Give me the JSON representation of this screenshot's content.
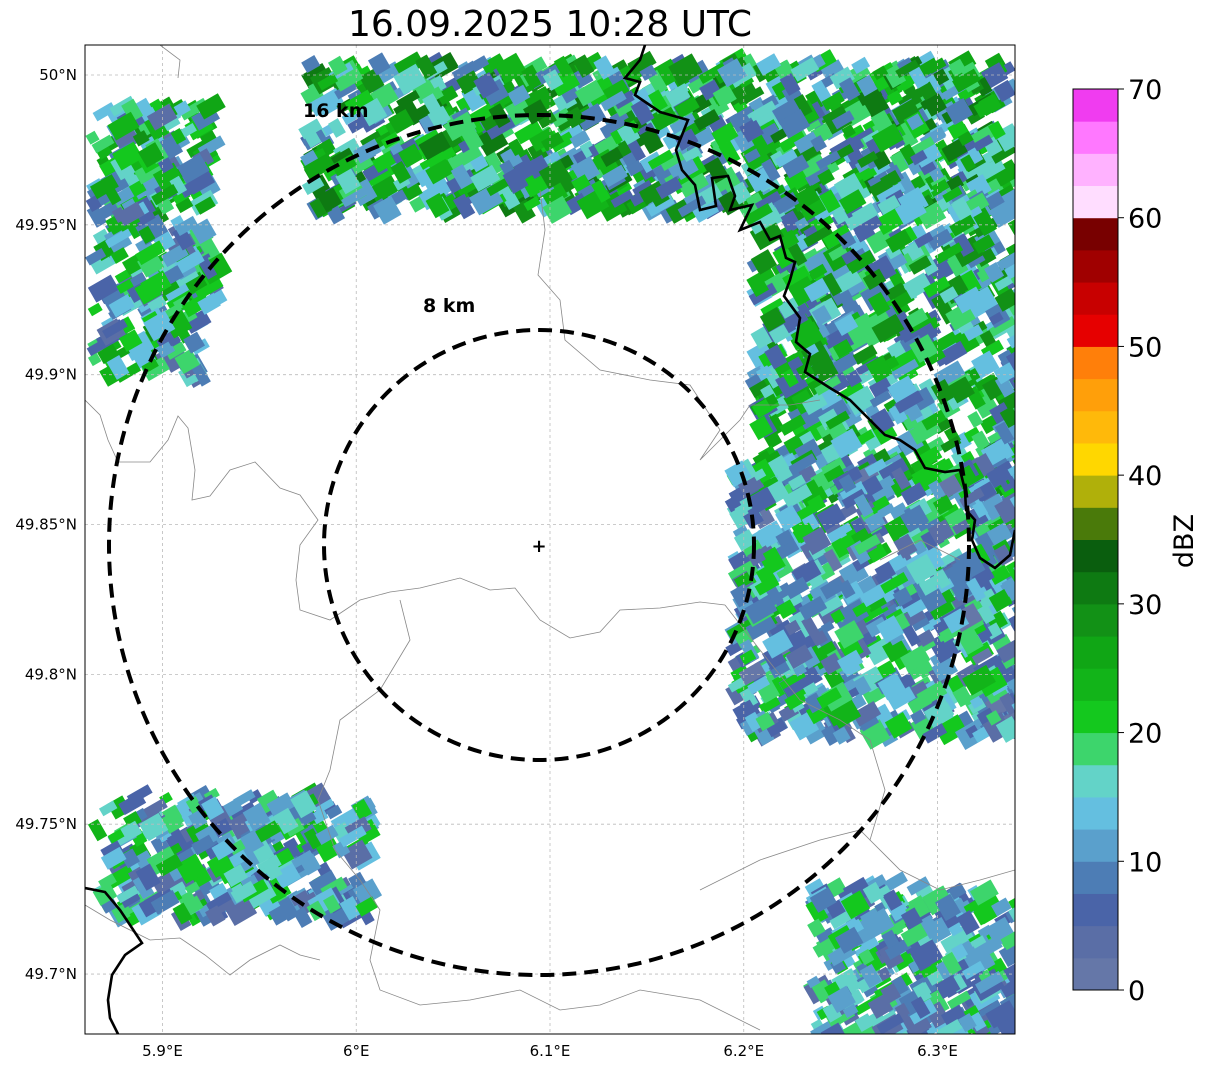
{
  "title": "16.09.2025 10:28 UTC",
  "map": {
    "lon_range": [
      5.86,
      6.34
    ],
    "lat_range": [
      49.68,
      50.01
    ],
    "x_ticks": [
      {
        "value": 5.9,
        "label": "5.9°E"
      },
      {
        "value": 6.0,
        "label": "6°E"
      },
      {
        "value": 6.1,
        "label": "6.1°E"
      },
      {
        "value": 6.2,
        "label": "6.2°E"
      },
      {
        "value": 6.3,
        "label": "6.3°E"
      }
    ],
    "y_ticks": [
      {
        "value": 50.0,
        "label": "50°N"
      },
      {
        "value": 49.95,
        "label": "49.95°N"
      },
      {
        "value": 49.9,
        "label": "49.9°N"
      },
      {
        "value": 49.85,
        "label": "49.85°N"
      },
      {
        "value": 49.8,
        "label": "49.8°N"
      },
      {
        "value": 49.75,
        "label": "49.75°N"
      },
      {
        "value": 49.7,
        "label": "49.7°N"
      }
    ],
    "grid": true,
    "radar_site": {
      "lon": 6.095,
      "lat": 49.843,
      "symbol": "+"
    },
    "range_rings": [
      {
        "radius_km": 8,
        "label": "8 km"
      },
      {
        "radius_km": 16,
        "label": "16 km"
      }
    ]
  },
  "colorbar": {
    "label": "dBZ",
    "min": 0,
    "max": 70,
    "ticks": [
      {
        "value": 0,
        "label": "0"
      },
      {
        "value": 10,
        "label": "10"
      },
      {
        "value": 20,
        "label": "20"
      },
      {
        "value": 30,
        "label": "30"
      },
      {
        "value": 40,
        "label": "40"
      },
      {
        "value": 50,
        "label": "50"
      },
      {
        "value": 60,
        "label": "60"
      },
      {
        "value": 70,
        "label": "70"
      }
    ],
    "colors": [
      "#6577a8",
      "#5a6ea6",
      "#4a64a8",
      "#4d7db5",
      "#5aa0cc",
      "#64bfe0",
      "#63d3c8",
      "#3dd56c",
      "#14c81e",
      "#12b419",
      "#10a615",
      "#129116",
      "#0e7a12",
      "#0a5e0e",
      "#4a7a0a",
      "#b0b00a",
      "#ffd700",
      "#ffb90a",
      "#ff9f0a",
      "#ff7f0a",
      "#e60000",
      "#c80000",
      "#a00000",
      "#780000",
      "#ffddff",
      "#ffb2ff",
      "#ff78ff",
      "#f03cf0"
    ]
  },
  "precip_cells": [
    {
      "name": "north-band",
      "lon": [
        5.97,
        6.33
      ],
      "lat": [
        49.955,
        50.005
      ],
      "dbz_range": [
        5,
        32
      ]
    },
    {
      "name": "northeast-band",
      "lon": [
        6.2,
        6.34
      ],
      "lat": [
        49.86,
        49.96
      ],
      "dbz_range": [
        5,
        30
      ]
    },
    {
      "name": "northwest-band",
      "lon": [
        5.86,
        5.92
      ],
      "lat": [
        49.9,
        49.99
      ],
      "dbz_range": [
        3,
        28
      ]
    },
    {
      "name": "east-cluster",
      "lon": [
        6.19,
        6.34
      ],
      "lat": [
        49.78,
        49.87
      ],
      "dbz_range": [
        2,
        24
      ]
    },
    {
      "name": "southwest-band",
      "lon": [
        5.86,
        6.0
      ],
      "lat": [
        49.72,
        49.76
      ],
      "dbz_range": [
        3,
        24
      ]
    },
    {
      "name": "southeast-cluster",
      "lon": [
        6.23,
        6.34
      ],
      "lat": [
        49.68,
        49.73
      ],
      "dbz_range": [
        3,
        22
      ]
    }
  ]
}
